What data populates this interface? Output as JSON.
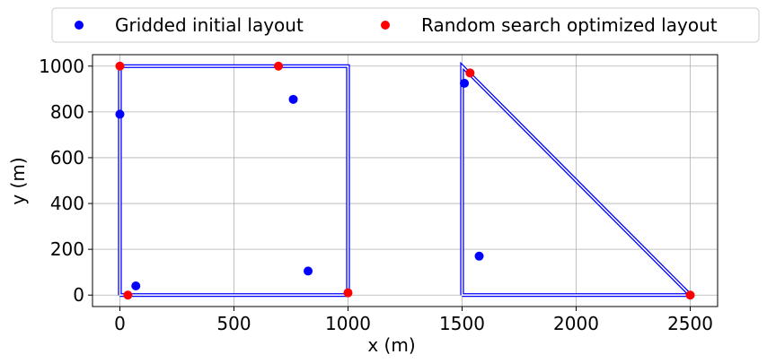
{
  "chart_data": {
    "type": "scatter",
    "xlabel": "x (m)",
    "ylabel": "y (m)",
    "xlim": [
      -120,
      2620
    ],
    "ylim": [
      -50,
      1050
    ],
    "xticks": [
      0,
      500,
      1000,
      1500,
      2000,
      2500
    ],
    "yticks": [
      0,
      200,
      400,
      600,
      800,
      1000
    ],
    "grid": true,
    "legend_position": "top, outside, 2 columns",
    "boundaries": [
      {
        "color": "#0000ff",
        "points": [
          [
            0,
            0
          ],
          [
            1000,
            0
          ],
          [
            1000,
            1000
          ],
          [
            0,
            1000
          ],
          [
            0,
            0
          ]
        ]
      },
      {
        "color": "#0000ff",
        "points": [
          [
            1500,
            0
          ],
          [
            2500,
            0
          ],
          [
            1500,
            1000
          ],
          [
            1500,
            0
          ]
        ]
      }
    ],
    "series": [
      {
        "name": "Gridded initial layout",
        "color": "#0000ff",
        "x": [
          0,
          70,
          760,
          825,
          1510,
          1575
        ],
        "y": [
          790,
          40,
          855,
          105,
          925,
          170
        ]
      },
      {
        "name": "Random search optimized layout",
        "color": "#ff0000",
        "x": [
          0,
          35,
          695,
          1000,
          1535,
          2500
        ],
        "y": [
          1000,
          0,
          1000,
          10,
          970,
          0
        ]
      }
    ]
  }
}
